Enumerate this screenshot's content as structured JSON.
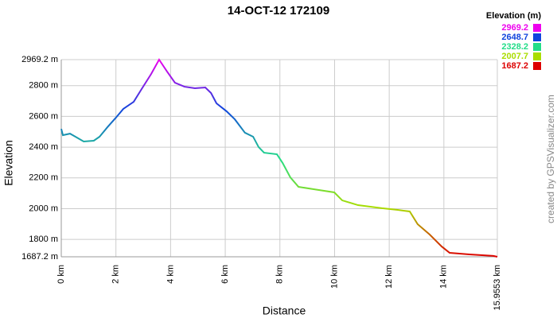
{
  "chart_data": {
    "type": "line",
    "title": "14-OCT-12 172109",
    "x_label": "Distance",
    "y_label": "Elevation",
    "credit": "created by GPSVisualizer.com",
    "legend_title": "Elevation (m)",
    "legend_items": [
      {
        "value": 2969.2,
        "color": "#ee00ee"
      },
      {
        "value": 2648.7,
        "color": "#1144dd"
      },
      {
        "value": 2328.2,
        "color": "#22dd88"
      },
      {
        "value": 2007.7,
        "color": "#aadd00"
      },
      {
        "value": 1687.2,
        "color": "#dd0000"
      }
    ],
    "x": [
      0,
      0.06,
      0.32,
      0.52,
      0.82,
      1.19,
      1.4,
      1.69,
      2.0,
      2.27,
      2.65,
      2.94,
      3.29,
      3.58,
      3.87,
      4.16,
      4.51,
      4.89,
      5.27,
      5.48,
      5.68,
      6.05,
      6.35,
      6.72,
      7.02,
      7.22,
      7.42,
      7.89,
      8.1,
      8.38,
      8.68,
      9.26,
      9.99,
      10.28,
      10.86,
      11.73,
      12.31,
      12.75,
      13.04,
      13.48,
      13.92,
      14.21,
      14.93,
      15.81,
      15.9553
    ],
    "series": [
      {
        "name": "Elevation",
        "values": [
          2519,
          2478,
          2488,
          2468,
          2437,
          2442,
          2468,
          2530,
          2592,
          2649,
          2695,
          2778,
          2876,
          2969.2,
          2892,
          2819,
          2793,
          2783,
          2788,
          2752,
          2685,
          2633,
          2581,
          2494,
          2468,
          2401,
          2364,
          2354,
          2297,
          2204,
          2142,
          2126,
          2106,
          2054,
          2023,
          2003,
          1992,
          1982,
          1899,
          1832,
          1754,
          1713,
          1703,
          1693,
          1687.2
        ]
      }
    ],
    "xlim": [
      0,
      15.9553
    ],
    "ylim": [
      1687.2,
      2969.2
    ],
    "xticks": [
      {
        "value": 0,
        "label": "0 km"
      },
      {
        "value": 2,
        "label": "2 km"
      },
      {
        "value": 4,
        "label": "4 km"
      },
      {
        "value": 6,
        "label": "6 km"
      },
      {
        "value": 8,
        "label": "8 km"
      },
      {
        "value": 10,
        "label": "10 km"
      },
      {
        "value": 12,
        "label": "12 km"
      },
      {
        "value": 14,
        "label": "14 km"
      },
      {
        "value": 15.9553,
        "label": "15.9553 km"
      }
    ],
    "yticks": [
      {
        "value": 1687.2,
        "label": "1687.2 m"
      },
      {
        "value": 1800,
        "label": "1800 m"
      },
      {
        "value": 2000,
        "label": "2000 m"
      },
      {
        "value": 2200,
        "label": "2200 m"
      },
      {
        "value": 2400,
        "label": "2400 m"
      },
      {
        "value": 2600,
        "label": "2600 m"
      },
      {
        "value": 2800,
        "label": "2800 m"
      },
      {
        "value": 2969.2,
        "label": "2969.2 m"
      }
    ],
    "grid": true
  }
}
